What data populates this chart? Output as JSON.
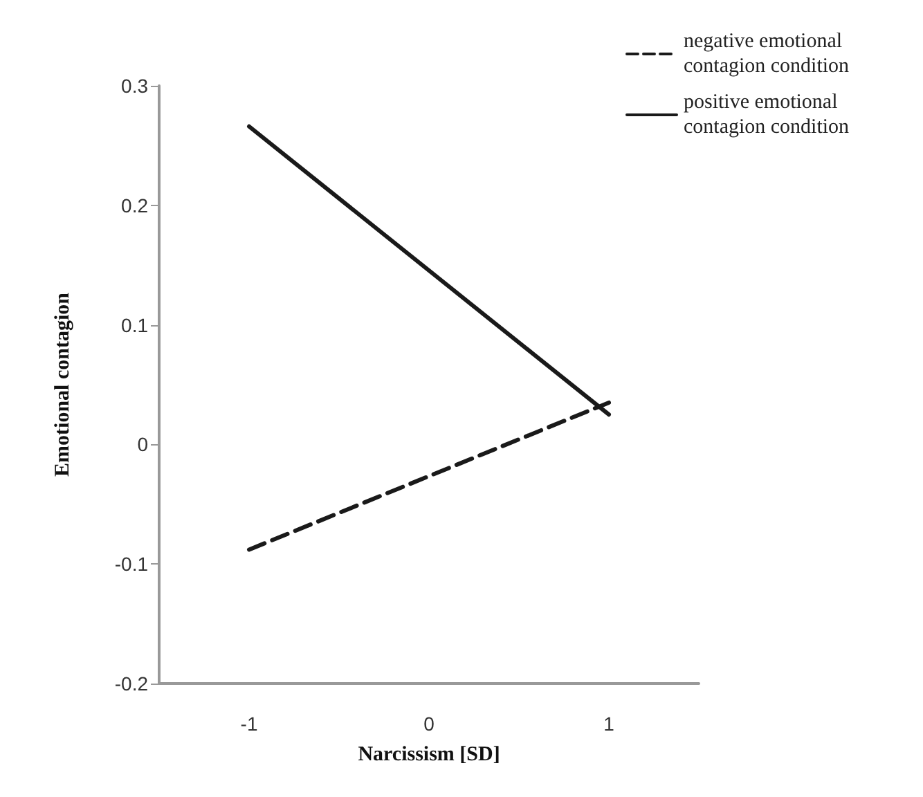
{
  "chart_data": {
    "type": "line",
    "xlabel": "Narcissism [SD]",
    "ylabel": "Emotional contagion",
    "x": [
      -1,
      1
    ],
    "series": [
      {
        "name": "negative emotional contagion condition",
        "color": "#1a1a1a",
        "line_style": "dashed",
        "values": [
          -0.088,
          0.035
        ]
      },
      {
        "name": "positive emotional contagion condition",
        "color": "#1a1a1a",
        "line_style": "solid",
        "values": [
          0.266,
          0.025
        ]
      }
    ],
    "xlim": [
      -1.5,
      1.5
    ],
    "xticks": [
      -1,
      0,
      1
    ],
    "ylim": [
      -0.2,
      0.3
    ],
    "yticks": [
      -0.2,
      -0.1,
      0,
      0.1,
      0.2,
      0.3
    ],
    "grid": false,
    "legend": "top right",
    "marker": "none"
  }
}
